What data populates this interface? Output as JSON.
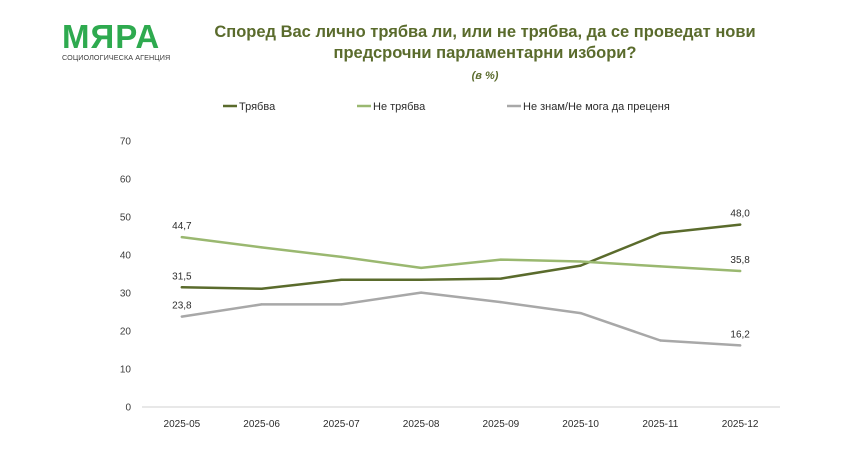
{
  "logo": {
    "name": "МЯРА",
    "tagline": "СОЦИОЛОГИЧЕСКА АГЕНЦИЯ"
  },
  "chart_data": {
    "type": "line",
    "title": "Според Вас лично трябва ли, или не трябва, да се проведат нови предсрочни парламентарни избори?",
    "subtitle": "(в %)",
    "categories": [
      "2025-05",
      "2025-06",
      "2025-07",
      "2025-08",
      "2025-09",
      "2025-10",
      "2025-11",
      "2025-12"
    ],
    "ylim": [
      0,
      70
    ],
    "yticks": [
      0,
      10,
      20,
      30,
      40,
      50,
      60,
      70
    ],
    "legend_position": "top",
    "series": [
      {
        "name": "Трябва",
        "color": "#5a6b2c",
        "values": [
          31.5,
          31.1,
          33.5,
          33.5,
          33.8,
          37.2,
          45.7,
          48.0
        ],
        "labels": [
          {
            "index": 0,
            "text": "31,5"
          },
          {
            "index": 7,
            "text": "48,0"
          }
        ]
      },
      {
        "name": "Не трябва",
        "color": "#9ab870",
        "values": [
          44.7,
          42.0,
          39.5,
          36.6,
          38.8,
          38.3,
          37.0,
          35.8
        ],
        "labels": [
          {
            "index": 0,
            "text": "44,7"
          },
          {
            "index": 7,
            "text": "35,8"
          }
        ]
      },
      {
        "name": "Не знам/Не мога да преценя",
        "color": "#a8a8a8",
        "values": [
          23.8,
          27.0,
          27.0,
          30.1,
          27.6,
          24.7,
          17.5,
          16.2
        ],
        "labels": [
          {
            "index": 0,
            "text": "23,8"
          },
          {
            "index": 7,
            "text": "16,2"
          }
        ]
      }
    ]
  }
}
